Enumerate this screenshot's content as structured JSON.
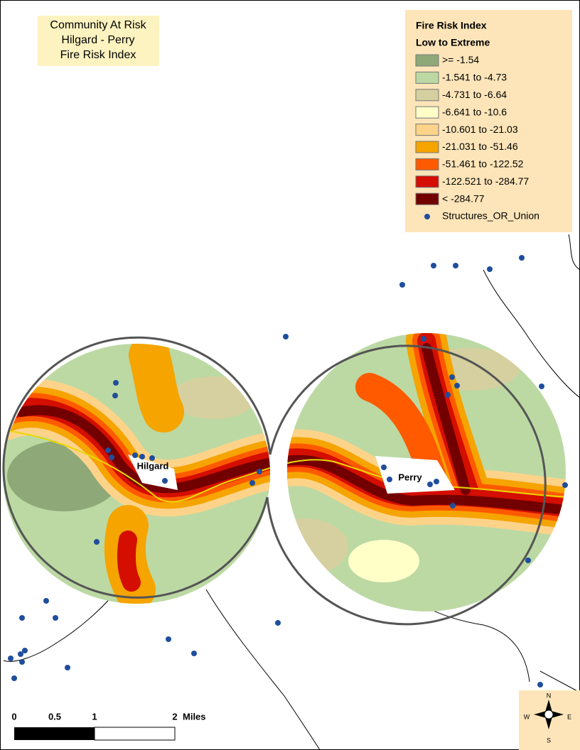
{
  "title": {
    "lines": [
      "Community At Risk",
      "Hilgard - Perry",
      "Fire Risk Index"
    ]
  },
  "legend": {
    "title": "Fire Risk Index",
    "subtitle": "Low to Extreme",
    "items": [
      {
        "label": ">=  -1.54",
        "color": "#8fa878"
      },
      {
        "label": "-1.541  to  -4.73",
        "color": "#bcd9a3"
      },
      {
        "label": "-4.731  to  -6.64",
        "color": "#d6d0a0"
      },
      {
        "label": "-6.641  to  -10.6",
        "color": "#ffffc8"
      },
      {
        "label": "-10.601  to  -21.03",
        "color": "#fdd38a"
      },
      {
        "label": "-21.031  to  -51.46",
        "color": "#f5a400"
      },
      {
        "label": "-51.461  to  -122.52",
        "color": "#ff5a00"
      },
      {
        "label": "-122.521  to  -284.77",
        "color": "#d40e00"
      },
      {
        "label": "< -284.77",
        "color": "#730000"
      }
    ],
    "points": {
      "label": "Structures_OR_Union",
      "color": "#1f4e9c"
    }
  },
  "places": [
    "Hilgard",
    "Perry"
  ],
  "scale": {
    "labels": [
      "0",
      "0.5",
      "1",
      "2"
    ],
    "unit": "Miles"
  },
  "compass": [
    "N",
    "S",
    "E",
    "W"
  ]
}
